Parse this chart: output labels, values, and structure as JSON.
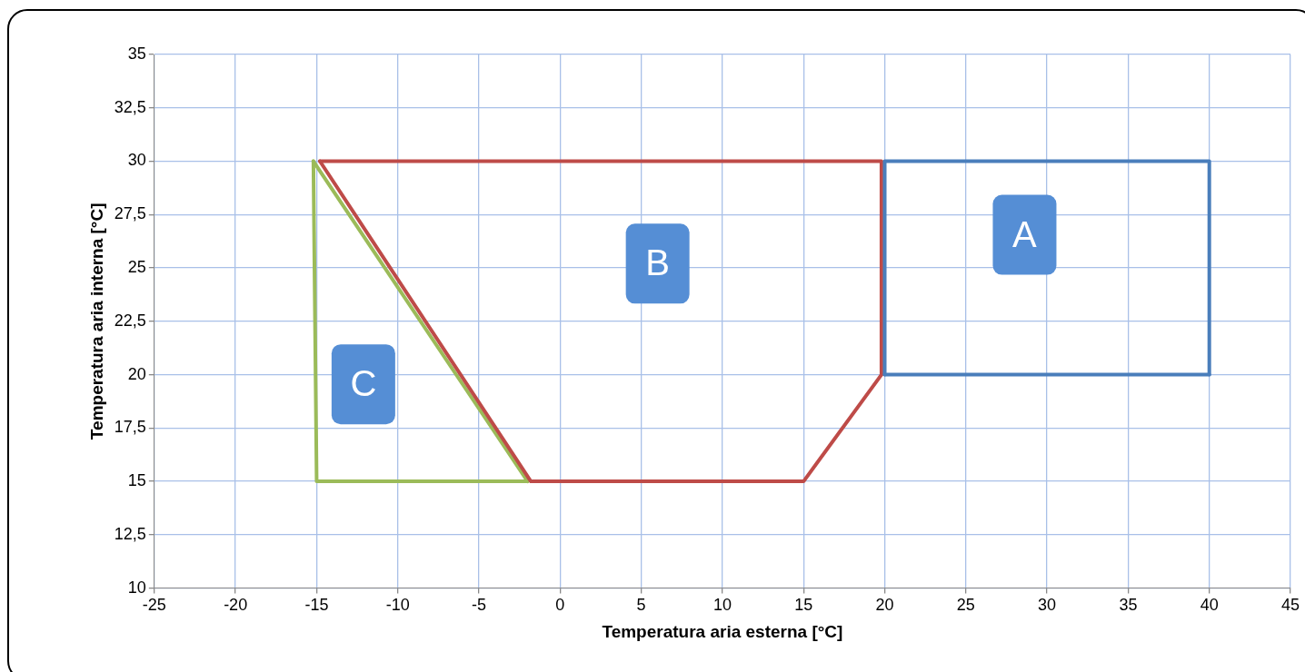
{
  "chart_data": {
    "type": "line",
    "xlabel": "Temperatura aria esterna [°C]",
    "ylabel": "Temperatura aria interna [°C]",
    "series": [
      {
        "color": "#4a7ebb",
        "x": [
          20,
          20,
          40,
          40
        ],
        "values": [
          20,
          30,
          30,
          20
        ]
      },
      {
        "color": "#4a7ebb",
        "x": [
          20,
          40
        ],
        "values": [
          20,
          20
        ]
      },
      {
        "color": "#be4b48",
        "x": [
          -14.8,
          19.8,
          19.8
        ],
        "values": [
          30,
          30,
          20
        ]
      },
      {
        "color": "#be4b48",
        "x": [
          -14.8,
          -1.8,
          15,
          19.8
        ],
        "values": [
          30,
          15,
          15,
          20
        ]
      },
      {
        "color": "#9bbb59",
        "x": [
          -15.2,
          -15,
          -2
        ],
        "values": [
          30,
          15,
          15
        ]
      },
      {
        "color": "#9bbb59",
        "x": [
          -15.2,
          -2
        ],
        "values": [
          30,
          15
        ]
      }
    ],
    "xlim": [
      -25,
      45
    ],
    "xticks": [
      -25,
      -20,
      -15,
      -10,
      -5,
      0,
      5,
      10,
      15,
      20,
      25,
      30,
      35,
      40,
      45
    ],
    "ylim": [
      10,
      35
    ],
    "yticks": [
      10,
      {
        "value": 12.5,
        "label": "12,5"
      },
      15,
      {
        "value": 17.5,
        "label": "17,5"
      },
      20,
      {
        "value": 22.5,
        "label": "22,5"
      },
      25,
      {
        "value": 27.5,
        "label": "27,5"
      },
      30,
      {
        "value": 32.5,
        "label": "32,5"
      },
      35
    ],
    "annotations": [
      "A",
      "B",
      "C"
    ],
    "grid": true,
    "legend": false,
    "marker": "none",
    "line_style": "solid"
  }
}
